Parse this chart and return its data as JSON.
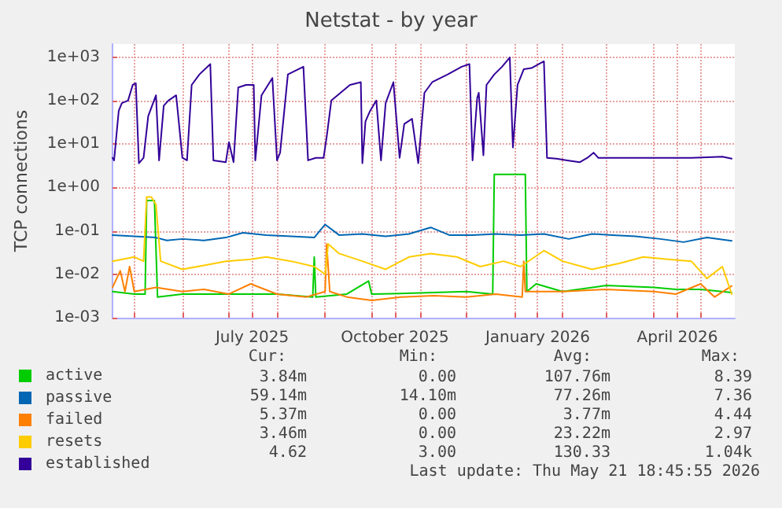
{
  "chart_data": {
    "type": "line",
    "title": "Netstat - by year",
    "ylabel": "TCP connections",
    "log": true,
    "grid": true,
    "legend": "bottom",
    "marker": "none",
    "line_style": "solid",
    "xlim": [
      "2025-04-17",
      "2026-05-23"
    ],
    "xticks": [
      {
        "value": "2025-05-01",
        "label": null
      },
      {
        "value": "2025-06-01",
        "label": null
      },
      {
        "value": "2025-07-01",
        "label": null
      },
      {
        "value": "2025-07-16",
        "label": "July 2025"
      },
      {
        "value": "2025-08-01",
        "label": null
      },
      {
        "value": "2025-09-01",
        "label": null
      },
      {
        "value": "2025-10-01",
        "label": null
      },
      {
        "value": "2025-10-16",
        "label": "October 2025"
      },
      {
        "value": "2025-11-01",
        "label": null
      },
      {
        "value": "2025-12-01",
        "label": null
      },
      {
        "value": "2026-01-01",
        "label": null
      },
      {
        "value": "2026-01-16",
        "label": "January 2026"
      },
      {
        "value": "2026-02-01",
        "label": null
      },
      {
        "value": "2026-03-01",
        "label": null
      },
      {
        "value": "2026-04-01",
        "label": null
      },
      {
        "value": "2026-04-16",
        "label": "April 2026"
      },
      {
        "value": "2026-05-01",
        "label": null
      }
    ],
    "ylim": [
      0.001,
      2000
    ],
    "yticks": [
      {
        "value": 0.001,
        "label": "1e-03"
      },
      {
        "value": 0.01,
        "label": "1e-02"
      },
      {
        "value": 0.1,
        "label": "1e-01"
      },
      {
        "value": 1,
        "label": "1e+00"
      },
      {
        "value": 10,
        "label": "1e+01"
      },
      {
        "value": 100,
        "label": "1e+02"
      },
      {
        "value": 1000,
        "label": "1e+03"
      }
    ],
    "series": [
      {
        "name": "active",
        "color": "#00cc00",
        "x": [
          "2025-04-17",
          "2025-05-01",
          "2025-05-08",
          "2025-05-09",
          "2025-05-14",
          "2025-05-16",
          "2025-06-01",
          "2025-07-01",
          "2025-08-01",
          "2025-08-24",
          "2025-08-25",
          "2025-08-26",
          "2025-09-15",
          "2025-09-29",
          "2025-10-01",
          "2025-11-01",
          "2025-12-01",
          "2025-12-18",
          "2025-12-19",
          "2026-01-08",
          "2026-01-09",
          "2026-01-15",
          "2026-02-01",
          "2026-03-01",
          "2026-04-01",
          "2026-04-15",
          "2026-05-01",
          "2026-05-21"
        ],
        "values": [
          0.004,
          0.0035,
          0.0035,
          0.5,
          0.5,
          0.003,
          0.0035,
          0.0035,
          0.0035,
          0.003,
          0.025,
          0.003,
          0.0035,
          0.007,
          0.0035,
          0.0037,
          0.004,
          0.0035,
          2.0,
          2.0,
          0.004,
          0.006,
          0.004,
          0.0055,
          0.005,
          0.0045,
          0.0045,
          0.0038
        ]
      },
      {
        "name": "passive",
        "color": "#0066b3",
        "x": [
          "2025-04-17",
          "2025-05-01",
          "2025-05-15",
          "2025-05-22",
          "2025-06-01",
          "2025-06-15",
          "2025-06-29",
          "2025-07-10",
          "2025-07-25",
          "2025-08-10",
          "2025-08-25",
          "2025-09-01",
          "2025-09-10",
          "2025-09-25",
          "2025-10-10",
          "2025-10-25",
          "2025-11-08",
          "2025-11-20",
          "2025-12-05",
          "2025-12-20",
          "2026-01-05",
          "2026-01-20",
          "2026-02-05",
          "2026-02-20",
          "2026-03-05",
          "2026-03-20",
          "2026-04-05",
          "2026-04-20",
          "2026-05-05",
          "2026-05-21"
        ],
        "values": [
          0.08,
          0.075,
          0.07,
          0.06,
          0.065,
          0.06,
          0.07,
          0.09,
          0.08,
          0.075,
          0.07,
          0.14,
          0.08,
          0.085,
          0.075,
          0.085,
          0.12,
          0.08,
          0.08,
          0.085,
          0.08,
          0.085,
          0.065,
          0.085,
          0.08,
          0.075,
          0.065,
          0.055,
          0.07,
          0.059
        ]
      },
      {
        "name": "failed",
        "color": "#ff8000",
        "x": [
          "2025-04-17",
          "2025-04-22",
          "2025-04-25",
          "2025-04-28",
          "2025-05-01",
          "2025-05-15",
          "2025-06-01",
          "2025-06-15",
          "2025-07-01",
          "2025-07-15",
          "2025-08-01",
          "2025-08-20",
          "2025-09-01",
          "2025-09-02",
          "2025-09-04",
          "2025-09-15",
          "2025-10-01",
          "2025-10-20",
          "2025-11-10",
          "2025-12-01",
          "2025-12-20",
          "2026-01-06",
          "2026-01-07",
          "2026-01-08",
          "2026-02-01",
          "2026-03-01",
          "2026-04-01",
          "2026-04-15",
          "2026-05-01",
          "2026-05-10",
          "2026-05-21"
        ],
        "values": [
          0.005,
          0.012,
          0.004,
          0.015,
          0.004,
          0.005,
          0.004,
          0.0045,
          0.0035,
          0.006,
          0.0035,
          0.003,
          0.004,
          0.05,
          0.004,
          0.003,
          0.0025,
          0.003,
          0.0032,
          0.003,
          0.0035,
          0.003,
          0.02,
          0.004,
          0.004,
          0.0045,
          0.004,
          0.0035,
          0.006,
          0.003,
          0.0054
        ]
      },
      {
        "name": "resets",
        "color": "#ffcc00",
        "x": [
          "2025-04-17",
          "2025-05-01",
          "2025-05-07",
          "2025-05-09",
          "2025-05-12",
          "2025-05-15",
          "2025-05-18",
          "2025-06-01",
          "2025-06-15",
          "2025-06-29",
          "2025-07-15",
          "2025-07-25",
          "2025-08-10",
          "2025-08-25",
          "2025-09-01",
          "2025-09-03",
          "2025-09-10",
          "2025-09-25",
          "2025-10-10",
          "2025-10-25",
          "2025-11-08",
          "2025-11-25",
          "2025-12-10",
          "2025-12-25",
          "2026-01-05",
          "2026-01-20",
          "2026-02-01",
          "2026-02-20",
          "2026-03-10",
          "2026-03-25",
          "2026-04-10",
          "2026-04-25",
          "2026-05-05",
          "2026-05-15",
          "2026-05-21"
        ],
        "values": [
          0.02,
          0.025,
          0.02,
          0.6,
          0.6,
          0.4,
          0.02,
          0.013,
          0.016,
          0.02,
          0.022,
          0.025,
          0.02,
          0.015,
          0.01,
          0.05,
          0.03,
          0.02,
          0.013,
          0.025,
          0.03,
          0.025,
          0.015,
          0.02,
          0.015,
          0.035,
          0.02,
          0.013,
          0.018,
          0.025,
          0.022,
          0.02,
          0.008,
          0.015,
          0.0035
        ]
      },
      {
        "name": "established",
        "color": "#330099",
        "x": [
          "2025-04-17",
          "2025-04-18",
          "2025-04-21",
          "2025-04-23",
          "2025-04-27",
          "2025-04-30",
          "2025-05-02",
          "2025-05-04",
          "2025-05-07",
          "2025-05-10",
          "2025-05-15",
          "2025-05-17",
          "2025-05-20",
          "2025-05-23",
          "2025-05-28",
          "2025-06-01",
          "2025-06-04",
          "2025-06-07",
          "2025-06-12",
          "2025-06-19",
          "2025-06-21",
          "2025-06-29",
          "2025-07-01",
          "2025-07-04",
          "2025-07-07",
          "2025-07-12",
          "2025-07-17",
          "2025-07-18",
          "2025-07-22",
          "2025-07-29",
          "2025-08-01",
          "2025-08-03",
          "2025-08-08",
          "2025-08-18",
          "2025-08-21",
          "2025-08-26",
          "2025-08-31",
          "2025-09-02",
          "2025-09-05",
          "2025-09-17",
          "2025-09-24",
          "2025-09-25",
          "2025-09-27",
          "2025-09-30",
          "2025-10-04",
          "2025-10-07",
          "2025-10-10",
          "2025-10-15",
          "2025-10-19",
          "2025-10-22",
          "2025-10-27",
          "2025-10-31",
          "2025-11-04",
          "2025-11-09",
          "2025-11-19",
          "2025-11-28",
          "2025-12-03",
          "2025-12-05",
          "2025-12-08",
          "2025-12-09",
          "2025-12-12",
          "2025-12-14",
          "2025-12-19",
          "2025-12-24",
          "2025-12-29",
          "2025-12-31",
          "2026-01-03",
          "2026-01-07",
          "2026-01-12",
          "2026-01-20",
          "2026-01-22",
          "2026-01-28",
          "2026-02-04",
          "2026-02-12",
          "2026-02-17",
          "2026-02-21",
          "2026-02-24",
          "2026-03-06",
          "2026-03-23",
          "2026-04-08",
          "2026-04-25",
          "2026-05-15",
          "2026-05-21"
        ],
        "values": [
          4.8,
          4.2,
          58,
          87,
          100,
          229,
          251,
          3.6,
          4.8,
          44,
          132,
          4.2,
          76,
          100,
          132,
          4.8,
          4.2,
          229,
          400,
          690,
          4.2,
          3.8,
          11,
          3.8,
          200,
          229,
          229,
          4.2,
          132,
          330,
          4.2,
          6.3,
          400,
          600,
          4.2,
          4.8,
          4.8,
          14.5,
          100,
          229,
          265,
          3.6,
          33,
          58,
          100,
          4.2,
          87,
          265,
          4.8,
          29,
          38,
          3.6,
          151,
          265,
          400,
          600,
          690,
          4.2,
          115,
          151,
          5.5,
          229,
          400,
          600,
          980,
          8.3,
          229,
          525,
          560,
          800,
          4.8,
          4.6,
          4.2,
          3.8,
          4.8,
          6.3,
          4.8,
          4.8,
          4.8,
          4.8,
          4.8,
          5.1,
          4.6
        ]
      }
    ],
    "annotations": [
      "Cur:",
      "Min:",
      "Avg:",
      "Max:",
      "3.84m",
      "0.00",
      "107.76m",
      "8.39",
      "59.14m",
      "14.10m",
      "77.26m",
      "7.36",
      "5.37m",
      "0.00",
      "3.77m",
      "4.44",
      "3.46m",
      "0.00",
      "23.22m",
      "2.97",
      "4.62",
      "3.00",
      "130.33",
      "1.04k",
      "Last update: Thu May 21 18:45:55 2026"
    ]
  }
}
